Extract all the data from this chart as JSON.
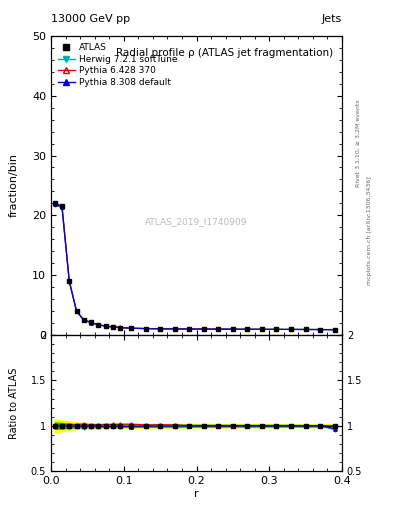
{
  "title_top": "13000 GeV pp",
  "title_right": "Jets",
  "plot_title": "Radial profile ρ (ATLAS jet fragmentation)",
  "xlabel": "r",
  "ylabel_main": "fraction/bin",
  "ylabel_ratio": "Ratio to ATLAS",
  "watermark": "ATLAS_2019_I1740909",
  "right_label": "Rivet 3.1.10, ≥ 3.2M events",
  "right_label2": "mcplots.cern.ch [arXiv:1306.3436]",
  "xlim": [
    0.0,
    0.4
  ],
  "ylim_main": [
    0,
    50
  ],
  "ylim_ratio": [
    0.5,
    2.0
  ],
  "yticks_main": [
    0,
    10,
    20,
    30,
    40,
    50
  ],
  "r_values": [
    0.005,
    0.015,
    0.025,
    0.035,
    0.045,
    0.055,
    0.065,
    0.075,
    0.085,
    0.095,
    0.11,
    0.13,
    0.15,
    0.17,
    0.19,
    0.21,
    0.23,
    0.25,
    0.27,
    0.29,
    0.31,
    0.33,
    0.35,
    0.37,
    0.39
  ],
  "atlas_values": [
    22.0,
    21.5,
    9.0,
    4.0,
    2.5,
    2.1,
    1.7,
    1.5,
    1.35,
    1.25,
    1.15,
    1.08,
    1.04,
    1.02,
    1.01,
    1.0,
    0.99,
    0.98,
    0.97,
    0.96,
    0.95,
    0.94,
    0.93,
    0.92,
    0.91
  ],
  "atlas_errors": [
    0.3,
    0.3,
    0.2,
    0.1,
    0.07,
    0.05,
    0.04,
    0.03,
    0.03,
    0.02,
    0.02,
    0.02,
    0.015,
    0.015,
    0.01,
    0.01,
    0.01,
    0.01,
    0.01,
    0.01,
    0.01,
    0.01,
    0.01,
    0.01,
    0.01
  ],
  "herwig_values": [
    21.8,
    21.3,
    8.9,
    3.95,
    2.45,
    2.08,
    1.68,
    1.48,
    1.33,
    1.23,
    1.13,
    1.07,
    1.03,
    1.01,
    1.005,
    0.998,
    0.988,
    0.978,
    0.968,
    0.958,
    0.948,
    0.938,
    0.928,
    0.918,
    0.87
  ],
  "pythia6_values": [
    22.1,
    21.6,
    9.1,
    4.05,
    2.55,
    2.12,
    1.72,
    1.52,
    1.37,
    1.27,
    1.17,
    1.09,
    1.05,
    1.03,
    1.012,
    1.002,
    0.992,
    0.982,
    0.972,
    0.962,
    0.952,
    0.942,
    0.932,
    0.922,
    0.912
  ],
  "pythia8_values": [
    21.9,
    21.4,
    8.95,
    3.98,
    2.48,
    2.09,
    1.69,
    1.49,
    1.34,
    1.24,
    1.14,
    1.075,
    1.035,
    1.015,
    1.007,
    0.999,
    0.989,
    0.979,
    0.969,
    0.959,
    0.949,
    0.939,
    0.929,
    0.919,
    0.88
  ],
  "herwig_ratio": [
    0.991,
    0.991,
    0.989,
    0.988,
    0.98,
    0.99,
    0.988,
    0.987,
    0.985,
    0.984,
    0.983,
    0.991,
    0.99,
    0.99,
    0.995,
    0.998,
    0.998,
    0.998,
    0.998,
    0.998,
    0.998,
    0.998,
    0.998,
    0.997,
    0.956
  ],
  "pythia6_ratio": [
    1.005,
    1.005,
    1.011,
    1.0125,
    1.02,
    1.01,
    1.012,
    1.013,
    1.015,
    1.016,
    1.017,
    1.009,
    1.01,
    1.01,
    1.002,
    1.002,
    1.002,
    1.002,
    1.002,
    1.002,
    1.002,
    1.002,
    1.001,
    1.001,
    1.001
  ],
  "pythia8_ratio": [
    0.995,
    0.995,
    0.994,
    0.995,
    0.992,
    0.995,
    0.994,
    0.993,
    0.993,
    0.992,
    0.991,
    0.995,
    0.995,
    0.995,
    0.997,
    0.999,
    0.999,
    0.999,
    0.999,
    0.999,
    0.999,
    0.999,
    0.999,
    0.999,
    0.967
  ],
  "atlas_color": "#000000",
  "herwig_color": "#00aaaa",
  "pythia6_color": "#dd0000",
  "pythia8_color": "#0000dd",
  "band_yellow": "#ffff00",
  "band_green": "#00cc00",
  "ratio_band_yellow": [
    0.93,
    0.94,
    0.955,
    0.965,
    0.97,
    0.972,
    0.974,
    0.975,
    0.976,
    0.977,
    0.977,
    0.978,
    0.979,
    0.98,
    0.981,
    0.982,
    0.982,
    0.983,
    0.983,
    0.984,
    0.984,
    0.985,
    0.985,
    0.986,
    0.986
  ],
  "ratio_band_yellow_up": [
    1.07,
    1.06,
    1.045,
    1.035,
    1.03,
    1.028,
    1.026,
    1.025,
    1.024,
    1.023,
    1.023,
    1.022,
    1.021,
    1.02,
    1.019,
    1.018,
    1.018,
    1.017,
    1.017,
    1.016,
    1.016,
    1.015,
    1.015,
    1.014,
    1.014
  ],
  "ratio_band_green": [
    0.965,
    0.97,
    0.977,
    0.982,
    0.985,
    0.986,
    0.987,
    0.9875,
    0.988,
    0.9885,
    0.9885,
    0.989,
    0.9895,
    0.99,
    0.9905,
    0.991,
    0.991,
    0.9915,
    0.9915,
    0.992,
    0.992,
    0.9925,
    0.9925,
    0.993,
    0.993
  ],
  "ratio_band_green_up": [
    1.035,
    1.03,
    1.023,
    1.018,
    1.015,
    1.014,
    1.013,
    1.0125,
    1.012,
    1.0115,
    1.0115,
    1.011,
    1.0105,
    1.01,
    1.0095,
    1.009,
    1.009,
    1.0085,
    1.0085,
    1.008,
    1.008,
    1.0075,
    1.0075,
    1.007,
    1.007
  ],
  "legend_entries": [
    "ATLAS",
    "Herwig 7.2.1 softTune",
    "Pythia 6.428 370",
    "Pythia 8.308 default"
  ]
}
